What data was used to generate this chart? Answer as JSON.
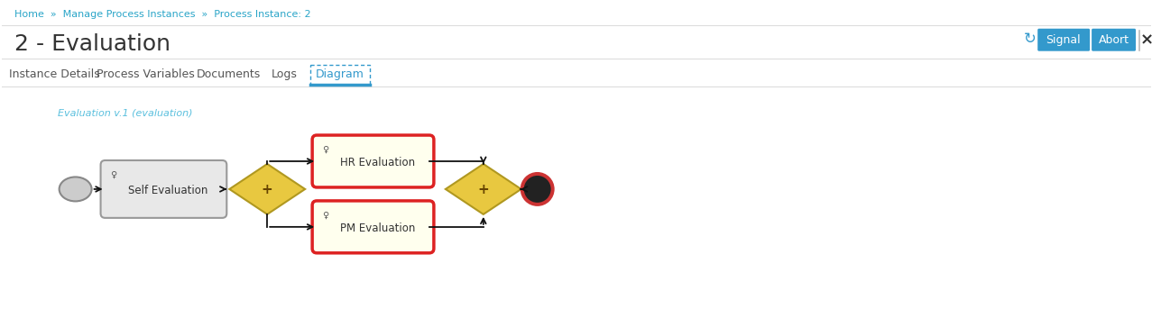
{
  "bg_color": "#ffffff",
  "breadcrumb_text": "Home  »  Manage Process Instances  »  Process Instance: 2",
  "breadcrumb_color": "#2aa5c8",
  "title": "2 - Evaluation",
  "title_color": "#333333",
  "button_signal": "Signal",
  "button_abort": "Abort",
  "button_color": "#3399cc",
  "button_text_color": "#ffffff",
  "refresh_color": "#3399cc",
  "close_color": "#333333",
  "tabs": [
    "Instance Details",
    "Process Variables",
    "Documents",
    "Logs",
    "Diagram"
  ],
  "active_tab": "Diagram",
  "active_tab_color": "#3399cc",
  "tab_color": "#555555",
  "diagram_label": "Evaluation v.1 (evaluation)",
  "diagram_label_color": "#5bc0de",
  "sep_color": "#dddddd",
  "task_fill": "#ffffee",
  "task_border_active": "#dd2222",
  "self_eval_fill_top": "#e8e8e8",
  "self_eval_fill_bot": "#c0c0c0",
  "self_eval_border": "#999999",
  "gateway_fill": "#e8c840",
  "gateway_border": "#b09820",
  "start_fill": "#cccccc",
  "start_border": "#888888",
  "end_ring": "#cc3333",
  "end_fill": "#222222",
  "arrow_color": "#111111"
}
